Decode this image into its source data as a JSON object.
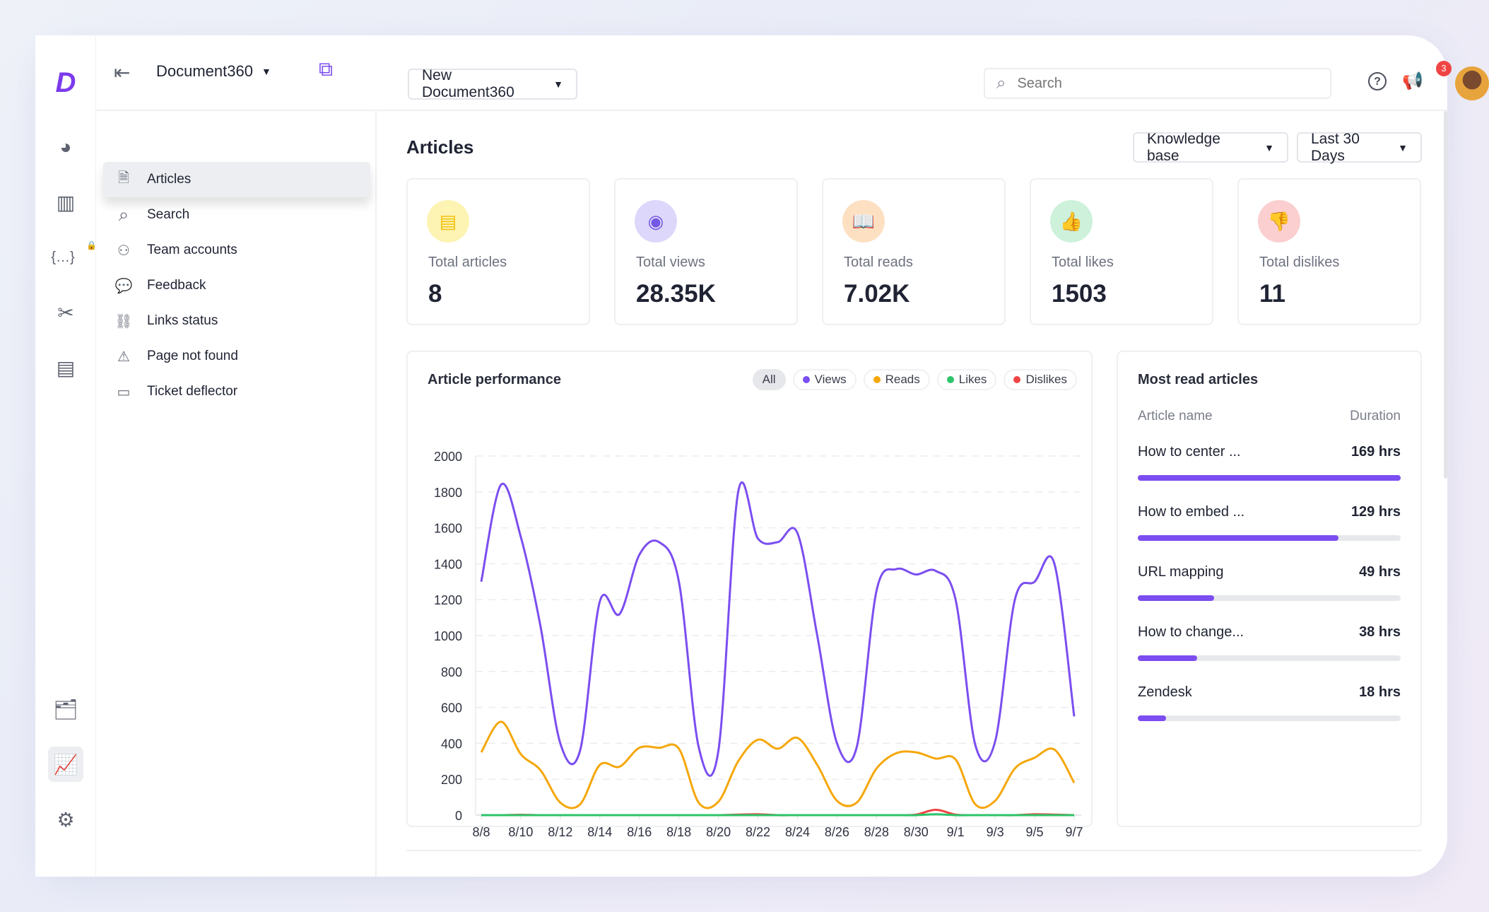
{
  "header": {
    "workspace": "Document360",
    "project_select": "New Document360",
    "search_placeholder": "Search",
    "notification_count": "3"
  },
  "sidebar": {
    "items": [
      {
        "label": "Articles",
        "icon": "document-icon",
        "glyph": "🗎"
      },
      {
        "label": "Search",
        "icon": "search-icon",
        "glyph": "⌕"
      },
      {
        "label": "Team accounts",
        "icon": "team-icon",
        "glyph": "👤"
      },
      {
        "label": "Feedback",
        "icon": "chat-bubble-icon",
        "glyph": "💬"
      },
      {
        "label": "Links status",
        "icon": "broken-link-icon",
        "glyph": "⛓"
      },
      {
        "label": "Page not found",
        "icon": "warning-icon",
        "glyph": "⚠"
      },
      {
        "label": "Ticket deflector",
        "icon": "ticket-icon",
        "glyph": "🎫"
      }
    ]
  },
  "main": {
    "title": "Articles",
    "filter_scope": "Knowledge base",
    "filter_range": "Last 30 Days",
    "stats": [
      {
        "label": "Total articles",
        "value": "8",
        "icon": "newspaper-icon",
        "bg": "#fdf3b3",
        "fg": "#f2bf0a"
      },
      {
        "label": "Total views",
        "value": "28.35K",
        "icon": "eye-icon",
        "bg": "#dcd7fb",
        "fg": "#7458e4"
      },
      {
        "label": "Total reads",
        "value": "7.02K",
        "icon": "open-book-icon",
        "bg": "#fde0c2",
        "fg": "#e49b45"
      },
      {
        "label": "Total likes",
        "value": "1503",
        "icon": "thumbs-up-icon",
        "bg": "#cdf1db",
        "fg": "#2fb464"
      },
      {
        "label": "Total dislikes",
        "value": "11",
        "icon": "thumbs-down-icon",
        "bg": "#fbcfcf",
        "fg": "#e65050"
      }
    ],
    "performance": {
      "title": "Article performance",
      "filters": [
        {
          "label": "All",
          "color": null
        },
        {
          "label": "Views",
          "color": "#7b4ef0"
        },
        {
          "label": "Reads",
          "color": "#f5a70a"
        },
        {
          "label": "Likes",
          "color": "#2dc46a"
        },
        {
          "label": "Dislikes",
          "color": "#ef4444"
        }
      ]
    },
    "most_read": {
      "title": "Most read articles",
      "col_name": "Article name",
      "col_duration": "Duration",
      "rows": [
        {
          "name": "How to center ...",
          "duration": "169 hrs",
          "hours": 169
        },
        {
          "name": "How to embed ...",
          "duration": "129 hrs",
          "hours": 129
        },
        {
          "name": "URL mapping",
          "duration": "49 hrs",
          "hours": 49
        },
        {
          "name": "How to change...",
          "duration": "38 hrs",
          "hours": 38
        },
        {
          "name": "Zendesk",
          "duration": "18 hrs",
          "hours": 18
        }
      ]
    }
  },
  "chart_data": {
    "type": "line",
    "title": "Article performance",
    "x": [
      "8/8",
      "8/9",
      "8/10",
      "8/11",
      "8/12",
      "8/13",
      "8/14",
      "8/15",
      "8/16",
      "8/17",
      "8/18",
      "8/19",
      "8/20",
      "8/21",
      "8/22",
      "8/23",
      "8/24",
      "8/25",
      "8/26",
      "8/27",
      "8/28",
      "8/29",
      "8/30",
      "8/31",
      "9/1",
      "9/2",
      "9/3",
      "9/4",
      "9/5",
      "9/6",
      "9/7"
    ],
    "x_tick_labels": [
      "8/8",
      "8/10",
      "8/12",
      "8/14",
      "8/16",
      "8/18",
      "8/20",
      "8/22",
      "8/24",
      "8/26",
      "8/28",
      "8/30",
      "9/1",
      "9/3",
      "9/5",
      "9/7"
    ],
    "ylim": [
      0,
      2000
    ],
    "y_ticks": [
      0,
      200,
      400,
      600,
      800,
      1000,
      1200,
      1400,
      1600,
      1800,
      2000
    ],
    "grid": true,
    "legend": "top-right",
    "series": [
      {
        "name": "Views",
        "color": "#7b4ef0",
        "values": [
          1300,
          1840,
          1550,
          1050,
          400,
          360,
          1190,
          1120,
          1450,
          1520,
          1300,
          380,
          360,
          1800,
          1540,
          1520,
          1570,
          1000,
          400,
          380,
          1250,
          1370,
          1340,
          1360,
          1200,
          390,
          410,
          1200,
          1300,
          1400,
          550
        ]
      },
      {
        "name": "Reads",
        "color": "#f5a70a",
        "values": [
          350,
          520,
          340,
          250,
          70,
          60,
          280,
          270,
          375,
          375,
          370,
          70,
          75,
          300,
          420,
          370,
          430,
          280,
          80,
          70,
          260,
          345,
          350,
          315,
          310,
          60,
          80,
          260,
          320,
          365,
          180
        ]
      },
      {
        "name": "Likes",
        "color": "#2dc46a",
        "values": [
          0,
          0,
          0,
          0,
          0,
          0,
          0,
          0,
          0,
          0,
          0,
          0,
          0,
          0,
          0,
          0,
          0,
          0,
          0,
          0,
          0,
          0,
          0,
          5,
          0,
          0,
          0,
          0,
          0,
          0,
          0
        ]
      },
      {
        "name": "Dislikes",
        "color": "#ef4444",
        "values": [
          0,
          0,
          2,
          0,
          0,
          0,
          0,
          0,
          0,
          0,
          0,
          0,
          0,
          3,
          5,
          0,
          0,
          0,
          0,
          0,
          0,
          0,
          3,
          30,
          3,
          0,
          0,
          0,
          5,
          3,
          0
        ]
      }
    ]
  }
}
